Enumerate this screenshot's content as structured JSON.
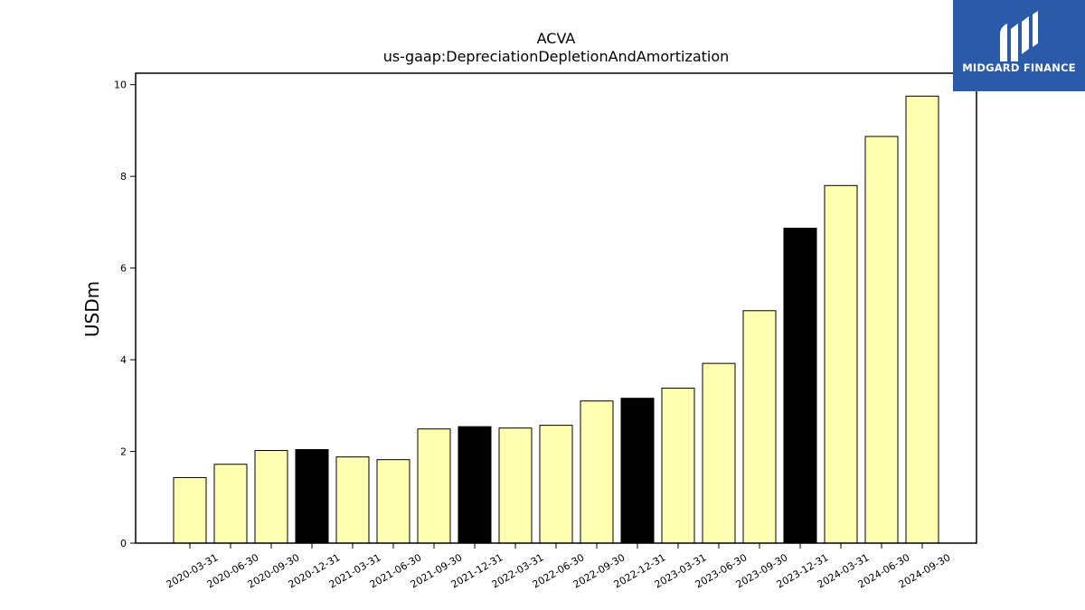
{
  "chart_data": {
    "type": "bar",
    "title": "ACVA",
    "subtitle": "us-gaap:DepreciationDepletionAndAmortization",
    "xlabel": "",
    "ylabel": "USDm",
    "ylim": [
      0,
      10.25
    ],
    "yticks": [
      0,
      2,
      4,
      6,
      8,
      10
    ],
    "grid": false,
    "categories": [
      "2020-03-31",
      "2020-06-30",
      "2020-09-30",
      "2020-12-31",
      "2021-03-31",
      "2021-06-30",
      "2021-09-30",
      "2021-12-31",
      "2022-03-31",
      "2022-06-30",
      "2022-09-30",
      "2022-12-31",
      "2023-03-31",
      "2023-06-30",
      "2023-09-30",
      "2023-12-31",
      "2024-03-31",
      "2024-06-30",
      "2024-09-30"
    ],
    "values": [
      1.43,
      1.72,
      2.02,
      2.04,
      1.88,
      1.82,
      2.49,
      2.54,
      2.51,
      2.57,
      3.1,
      3.16,
      3.38,
      3.92,
      5.07,
      6.87,
      7.8,
      8.87,
      9.75
    ],
    "highlight": [
      false,
      false,
      false,
      true,
      false,
      false,
      false,
      true,
      false,
      false,
      false,
      true,
      false,
      false,
      false,
      true,
      false,
      false,
      false
    ],
    "colors": {
      "normal": "#ffffb2",
      "highlight": "#000000",
      "edge": "#000000"
    }
  },
  "logo": {
    "text": "MIDGARD FINANCE",
    "background": "#2b5aa8"
  }
}
